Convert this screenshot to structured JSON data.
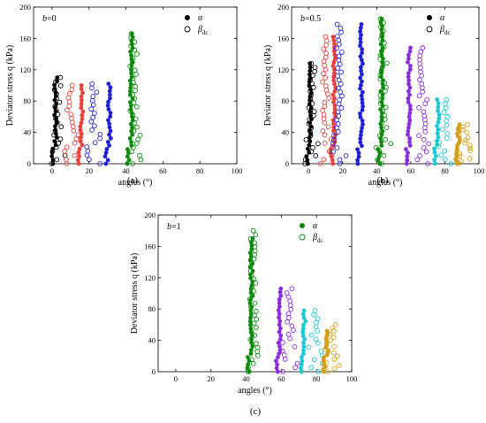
{
  "chart_data": [
    {
      "type": "scatter",
      "panel_label": "(a)",
      "b_label": "b",
      "b_value": "=0",
      "xlabel": "angles  (°)",
      "ylabel": "Deviator stress q (kPa)",
      "xlim": [
        -10,
        100
      ],
      "ylim": [
        0,
        200
      ],
      "xticks": [
        "0",
        "20",
        "40",
        "60",
        "80",
        "100"
      ],
      "yticks": [
        "0",
        "40",
        "80",
        "120",
        "160",
        "200"
      ],
      "legend": {
        "position": "top-right",
        "alpha_label": "α",
        "beta_label": "β",
        "beta_sub": "dc"
      },
      "groups": [
        {
          "color": "#000000",
          "alpha": {
            "x": 2,
            "qmax": 110
          },
          "beta": {
            "x": 3,
            "spread": 4,
            "qmax": 110
          }
        },
        {
          "color": "#e8403a",
          "alpha": {
            "x": 16,
            "qmax": 100
          },
          "beta": {
            "x": 10,
            "spread": 4,
            "qmax": 100
          }
        },
        {
          "color": "#1f1fd6",
          "alpha": {
            "x": 31,
            "qmax": 102
          },
          "beta": {
            "x": 23,
            "spread": 4,
            "qmax": 102
          }
        },
        {
          "color": "#0a8a0a",
          "alpha": {
            "x": 43,
            "qmax": 166
          },
          "beta": {
            "x": 44,
            "spread": 4,
            "qmax": 166
          }
        }
      ]
    },
    {
      "type": "scatter",
      "panel_label": "(b)",
      "b_label": "b",
      "b_value": "=0.5",
      "xlabel": "angles  (°)",
      "ylabel": "Deviator stress q (kPa)",
      "xlim": [
        -10,
        100
      ],
      "ylim": [
        0,
        200
      ],
      "xticks": [
        "0",
        "20",
        "40",
        "60",
        "80",
        "100"
      ],
      "yticks": [
        "0",
        "40",
        "80",
        "120",
        "160",
        "200"
      ],
      "legend": {
        "position": "top-right",
        "alpha_label": "α",
        "beta_label": "β",
        "beta_sub": "dc"
      },
      "groups": [
        {
          "color": "#000000",
          "alpha": {
            "x": 1,
            "qmax": 128
          },
          "beta": {
            "x": 2,
            "spread": 4,
            "qmax": 128
          }
        },
        {
          "color": "#e8403a",
          "alpha": {
            "x": 15,
            "qmax": 162
          },
          "beta": {
            "x": 10,
            "spread": 4,
            "qmax": 162
          }
        },
        {
          "color": "#1f1fd6",
          "alpha": {
            "x": 31,
            "qmax": 178
          },
          "beta": {
            "x": 18,
            "spread": 4,
            "qmax": 178
          }
        },
        {
          "color": "#0a8a0a",
          "alpha": {
            "x": 43,
            "qmax": 185
          },
          "beta": {
            "x": 44,
            "spread": 4,
            "qmax": 185
          }
        },
        {
          "color": "#8a2be2",
          "alpha": {
            "x": 59,
            "qmax": 148
          },
          "beta": {
            "x": 67,
            "spread": 5,
            "qmax": 148
          }
        },
        {
          "color": "#19c8d2",
          "alpha": {
            "x": 76,
            "qmax": 82
          },
          "beta": {
            "x": 80,
            "spread": 4,
            "qmax": 82
          }
        },
        {
          "color": "#d4a017",
          "alpha": {
            "x": 88,
            "qmax": 50
          },
          "beta": {
            "x": 92,
            "spread": 4,
            "qmax": 50
          }
        }
      ]
    },
    {
      "type": "scatter",
      "panel_label": "(c)",
      "b_label": "b",
      "b_value": "=1",
      "xlabel": "angles  (°)",
      "ylabel": "Deviator stress q (kPa)",
      "xlim": [
        -10,
        100
      ],
      "ylim": [
        0,
        200
      ],
      "xticks": [
        "0",
        "20",
        "40",
        "60",
        "80",
        "100"
      ],
      "yticks": [
        "0",
        "40",
        "80",
        "120",
        "160",
        "200"
      ],
      "legend": {
        "position": "top-right",
        "alpha_label": "α",
        "beta_label": "β",
        "beta_sub": "dc"
      },
      "groups": [
        {
          "color": "#0a8a0a",
          "alpha": {
            "x": 43,
            "qmax": 170
          },
          "beta": {
            "x": 44,
            "spread": 4,
            "qmax": 180
          }
        },
        {
          "color": "#8a2be2",
          "alpha": {
            "x": 59,
            "qmax": 106
          },
          "beta": {
            "x": 65,
            "spread": 4,
            "qmax": 106
          }
        },
        {
          "color": "#19c8d2",
          "alpha": {
            "x": 73,
            "qmax": 78
          },
          "beta": {
            "x": 79,
            "spread": 4,
            "qmax": 78
          }
        },
        {
          "color": "#d4a017",
          "alpha": {
            "x": 86,
            "qmax": 52
          },
          "beta": {
            "x": 89,
            "spread": 4,
            "qmax": 60
          }
        }
      ]
    }
  ]
}
